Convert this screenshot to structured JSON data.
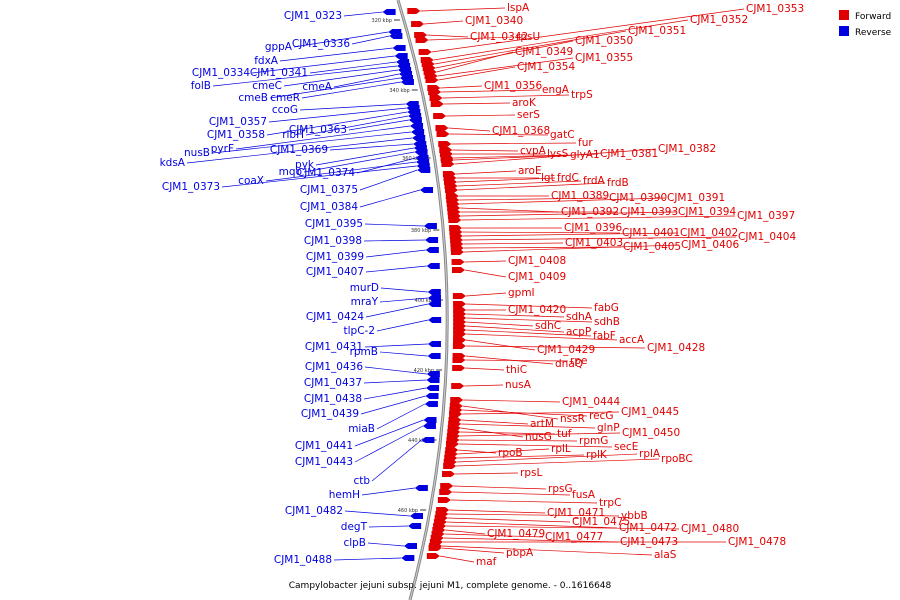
{
  "caption": "Campylobacter jejuni subsp. jejuni M1, complete genome. - 0..1616648",
  "legend": [
    {
      "label": "Forward",
      "color": "#e00000"
    },
    {
      "label": "Reverse",
      "color": "#0000e0"
    }
  ],
  "ticks": [
    "320 kbp",
    "340 kbp",
    "360 kbp",
    "380 kbp",
    "400 kbp",
    "420 kbp",
    "440 kbp",
    "460 kbp"
  ],
  "forward_genes": [
    "lspA",
    "CJM1_0340",
    "CJM1_0342",
    "rpsU",
    "CJM1_0353",
    "CJM1_0352",
    "CJM1_0351",
    "CJM1_0350",
    "CJM1_0349",
    "CJM1_0355",
    "CJM1_0354",
    "CJM1_0356",
    "engA",
    "trpS",
    "aroK",
    "serS",
    "CJM1_0368",
    "gatC",
    "fur",
    "cvpA",
    "lysS",
    "glyA1",
    "CJM1_0381",
    "CJM1_0382",
    "aroE",
    "lgt",
    "frdC",
    "frdA",
    "frdB",
    "CJM1_0389",
    "CJM1_0390",
    "CJM1_0391",
    "CJM1_0392",
    "CJM1_0393",
    "CJM1_0394",
    "CJM1_0397",
    "CJM1_0396",
    "CJM1_0401",
    "CJM1_0402",
    "CJM1_0404",
    "CJM1_0403",
    "CJM1_0405",
    "CJM1_0406",
    "CJM1_0408",
    "CJM1_0409",
    "gpmI",
    "fabG",
    "CJM1_0420",
    "sdhA",
    "sdhB",
    "sdhC",
    "acpP",
    "fabF",
    "accA",
    "CJM1_0429",
    "CJM1_0428",
    "dnaQ",
    "rpe",
    "thiC",
    "nusA",
    "CJM1_0444",
    "nssR",
    "recG",
    "CJM1_0445",
    "artM",
    "glnP",
    "nusG",
    "tuf",
    "CJM1_0450",
    "rpmG",
    "secE",
    "rpoB",
    "rplL",
    "rplK",
    "rplA",
    "rpoBC",
    "rpsL",
    "rpsG",
    "fusA",
    "trpC",
    "CJM1_0471",
    "ybbB",
    "CJM1_0475",
    "CJM1_0472",
    "CJM1_0480",
    "CJM1_0479",
    "CJM1_0477",
    "CJM1_0473",
    "CJM1_0478",
    "alaS",
    "pbpA",
    "maf"
  ],
  "reverse_genes": [
    "CJM1_0323",
    "gppA",
    "CJM1_0336",
    "fdxA",
    "CJM1_0334",
    "CJM1_0341",
    "folB",
    "cmeC",
    "cmeA",
    "cmeB",
    "cmeR",
    "ccoG",
    "CJM1_0357",
    "CJM1_0358",
    "ribH",
    "CJM1_0363",
    "pyrF",
    "nusB",
    "kdsA",
    "CJM1_0369",
    "pyk",
    "mqo",
    "CJM1_0374",
    "coaX",
    "CJM1_0373",
    "CJM1_0375",
    "CJM1_0384",
    "CJM1_0395",
    "CJM1_0398",
    "CJM1_0399",
    "CJM1_0407",
    "murD",
    "mraY",
    "CJM1_0424",
    "tlpC-2",
    "CJM1_0431",
    "rpmB",
    "CJM1_0436",
    "CJM1_0437",
    "CJM1_0438",
    "CJM1_0439",
    "miaB",
    "CJM1_0441",
    "CJM1_0443",
    "ctb",
    "hemH",
    "CJM1_0482",
    "degT",
    "clpB",
    "CJM1_0488"
  ]
}
